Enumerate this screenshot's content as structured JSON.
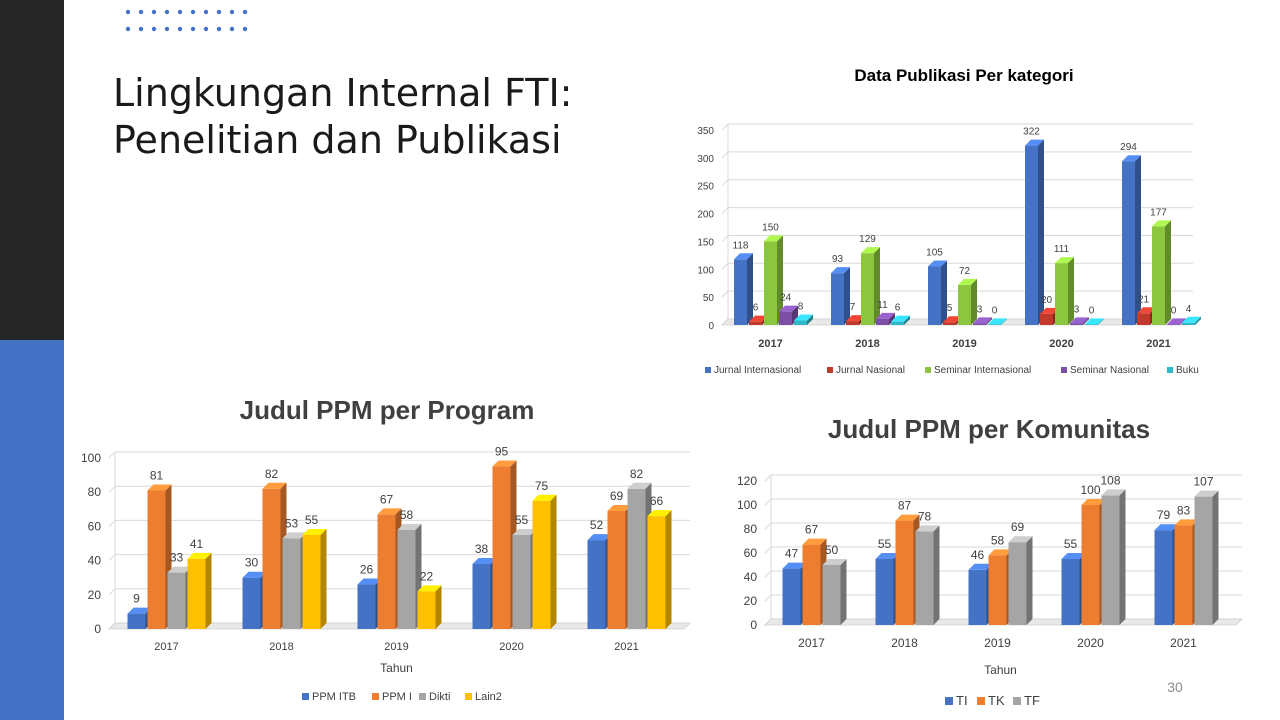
{
  "slide": {
    "title_line1": "Lingkungan Internal FTI:",
    "title_line2": "Penelitian dan Publikasi",
    "page_number": "30",
    "accent_dark": "#262626",
    "accent_blue": "#4472c4"
  },
  "chart_data": [
    {
      "id": "publikasi",
      "type": "bar",
      "title": "Data Publikasi Per kategori",
      "xlabel": "",
      "ylabel": "",
      "categories": [
        "2017",
        "2018",
        "2019",
        "2020",
        "2021"
      ],
      "ylim": [
        0,
        350
      ],
      "yticks": [
        0,
        50,
        100,
        150,
        200,
        250,
        300,
        350
      ],
      "grid": true,
      "legend_position": "bottom",
      "series": [
        {
          "name": "Jurnal Internasional",
          "color": "#4472c4",
          "values": [
            118,
            93,
            105,
            322,
            294
          ]
        },
        {
          "name": "Jurnal Nasional",
          "color": "#c0392b",
          "values": [
            6,
            7,
            5,
            20,
            21
          ]
        },
        {
          "name": "Seminar Internasional",
          "color": "#8cc63f",
          "values": [
            150,
            129,
            72,
            111,
            177
          ]
        },
        {
          "name": "Seminar Nasional",
          "color": "#7b4fa6",
          "values": [
            24,
            11,
            3,
            3,
            0
          ]
        },
        {
          "name": "Buku",
          "color": "#2eb8c9",
          "values": [
            8,
            6,
            0,
            0,
            4
          ]
        }
      ]
    },
    {
      "id": "program",
      "type": "bar",
      "title": "Judul PPM per Program",
      "xlabel": "Tahun",
      "ylabel": "",
      "categories": [
        "2017",
        "2018",
        "2019",
        "2020",
        "2021"
      ],
      "ylim": [
        0,
        100
      ],
      "yticks": [
        0,
        20,
        40,
        60,
        80,
        100
      ],
      "grid": true,
      "legend_position": "bottom",
      "series": [
        {
          "name": "PPM ITB",
          "color": "#4472c4",
          "values": [
            9,
            30,
            26,
            38,
            52
          ]
        },
        {
          "name": "PPM I",
          "color": "#ed7d31",
          "values": [
            81,
            82,
            67,
            95,
            69
          ]
        },
        {
          "name": "Dikti",
          "color": "#a5a5a5",
          "values": [
            33,
            53,
            58,
            55,
            82
          ]
        },
        {
          "name": "Lain2",
          "color": "#ffc000",
          "values": [
            41,
            55,
            22,
            75,
            66
          ]
        }
      ]
    },
    {
      "id": "komunitas",
      "type": "bar",
      "title": "Judul PPM per Komunitas",
      "xlabel": "Tahun",
      "ylabel": "",
      "categories": [
        "2017",
        "2018",
        "2019",
        "2020",
        "2021"
      ],
      "ylim": [
        0,
        120
      ],
      "yticks": [
        0,
        20,
        40,
        60,
        80,
        100,
        120
      ],
      "grid": true,
      "legend_position": "bottom",
      "series": [
        {
          "name": "TI",
          "color": "#4472c4",
          "values": [
            47,
            55,
            46,
            55,
            79
          ]
        },
        {
          "name": "TK",
          "color": "#ed7d31",
          "values": [
            67,
            87,
            58,
            100,
            83
          ]
        },
        {
          "name": "TF",
          "color": "#a5a5a5",
          "values": [
            50,
            78,
            69,
            108,
            107
          ]
        }
      ]
    }
  ]
}
